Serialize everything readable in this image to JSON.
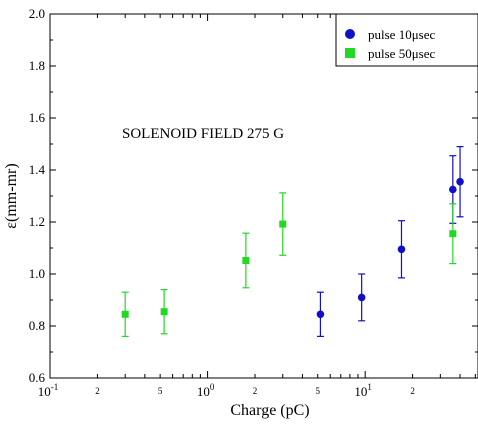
{
  "chart_data": {
    "type": "scatter",
    "xlabel": "Charge (pC)",
    "ylabel": "ε(mm-mr)",
    "x_scale": "log",
    "xlim": [
      0.1,
      52
    ],
    "ylim": [
      0.6,
      2.0
    ],
    "y_ticks": [
      "0.6",
      "0.8",
      "1.0",
      "1.2",
      "1.4",
      "1.6",
      "1.8",
      "2.0"
    ],
    "x_major_ticks": [
      {
        "value": 0.1,
        "base": "10",
        "exp": "-1"
      },
      {
        "value": 1,
        "base": "10",
        "exp": "0"
      },
      {
        "value": 10,
        "base": "10",
        "exp": "1"
      }
    ],
    "x_minor_labels": [
      {
        "value": 0.2,
        "label": "2"
      },
      {
        "value": 0.5,
        "label": "5"
      },
      {
        "value": 2,
        "label": "2"
      },
      {
        "value": 5,
        "label": "5"
      },
      {
        "value": 20,
        "label": "2"
      }
    ],
    "annotation": "SOLENOID FIELD 275 G",
    "legend_position": "top-right",
    "grid": false,
    "series": [
      {
        "name": "pulse 10μsec",
        "marker": "circle",
        "color": "#1010c8",
        "points": [
          {
            "x": 5.2,
            "y": 0.845,
            "err": 0.085
          },
          {
            "x": 9.5,
            "y": 0.91,
            "err": 0.09
          },
          {
            "x": 17,
            "y": 1.095,
            "err": 0.11
          },
          {
            "x": 36,
            "y": 1.325,
            "err": 0.13
          },
          {
            "x": 40,
            "y": 1.355,
            "err": 0.135
          }
        ]
      },
      {
        "name": "pulse 50μsec",
        "marker": "square",
        "color": "#22d822",
        "points": [
          {
            "x": 0.3,
            "y": 0.845,
            "err": 0.085
          },
          {
            "x": 0.53,
            "y": 0.855,
            "err": 0.085
          },
          {
            "x": 1.75,
            "y": 1.052,
            "err": 0.105
          },
          {
            "x": 3.0,
            "y": 1.192,
            "err": 0.12
          },
          {
            "x": 36,
            "y": 1.155,
            "err": 0.115
          }
        ]
      }
    ]
  }
}
